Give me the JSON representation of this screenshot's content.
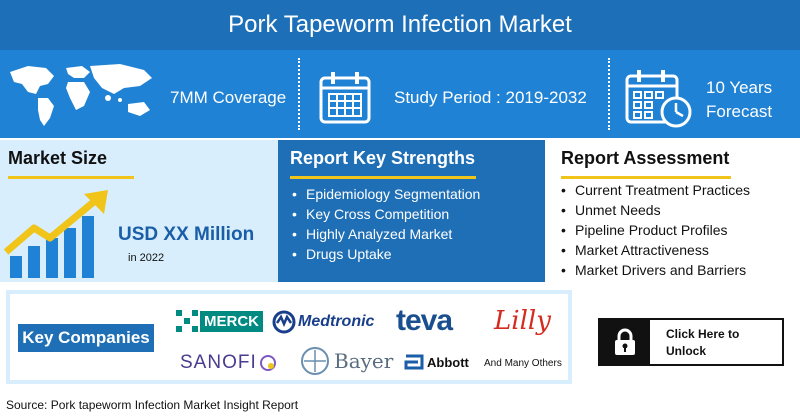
{
  "header": {
    "title": "Pork Tapeworm Infection Market"
  },
  "stats": {
    "coverage": "7MM Coverage",
    "study_period": "Study Period : 2019-2032",
    "forecast_line1": "10 Years",
    "forecast_line2": "Forecast",
    "icons": [
      "world-map-icon",
      "calendar-icon",
      "calendar-clock-icon"
    ]
  },
  "market_size": {
    "title": "Market Size",
    "value": "USD XX Million",
    "year": "in 2022",
    "icon": "growth-chart-icon"
  },
  "strengths": {
    "title": "Report Key Strengths",
    "items": [
      "Epidemiology Segmentation",
      "Key Cross Competition",
      "Highly Analyzed Market",
      "Drugs Uptake"
    ]
  },
  "assessment": {
    "title": "Report Assessment",
    "items": [
      "Current Treatment Practices",
      "Unmet Needs",
      "Pipeline Product Profiles",
      "Market Attractiveness",
      "Market Drivers and Barriers"
    ]
  },
  "companies": {
    "label": "Key Companies",
    "logos": [
      "MERCK",
      "Medtronic",
      "teva",
      "Lilly",
      "SANOFI",
      "Bayer",
      "Abbott"
    ],
    "others": "And Many Others"
  },
  "cta": {
    "line1": "Click Here to",
    "line2": "Unlock",
    "icon": "lock-icon"
  },
  "source": "Source: Pork tapeworm Infection Market Insight Report",
  "colors": {
    "header": "#1d6fb8",
    "stats_band": "#1f82d4",
    "accent": "#f0c419",
    "panel_light": "#d8eefc",
    "panel_dark": "#1f6fb6",
    "title_text": "#1a5ea8"
  }
}
